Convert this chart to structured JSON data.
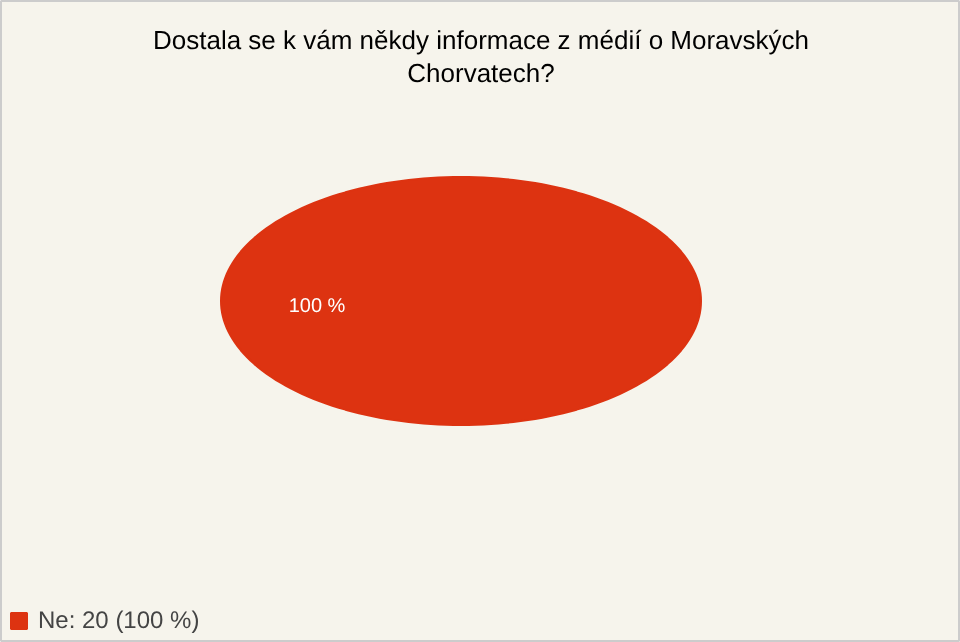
{
  "chart_data": {
    "type": "pie",
    "title": "Dostala se k vám někdy informace z médií o Moravských Chorvatech?",
    "categories": [
      "Ne: 20 (100 %)"
    ],
    "values": [
      100
    ],
    "colors": [
      "#dd3311"
    ],
    "value_labels": [
      "100 %"
    ],
    "legend": "bottom left"
  }
}
